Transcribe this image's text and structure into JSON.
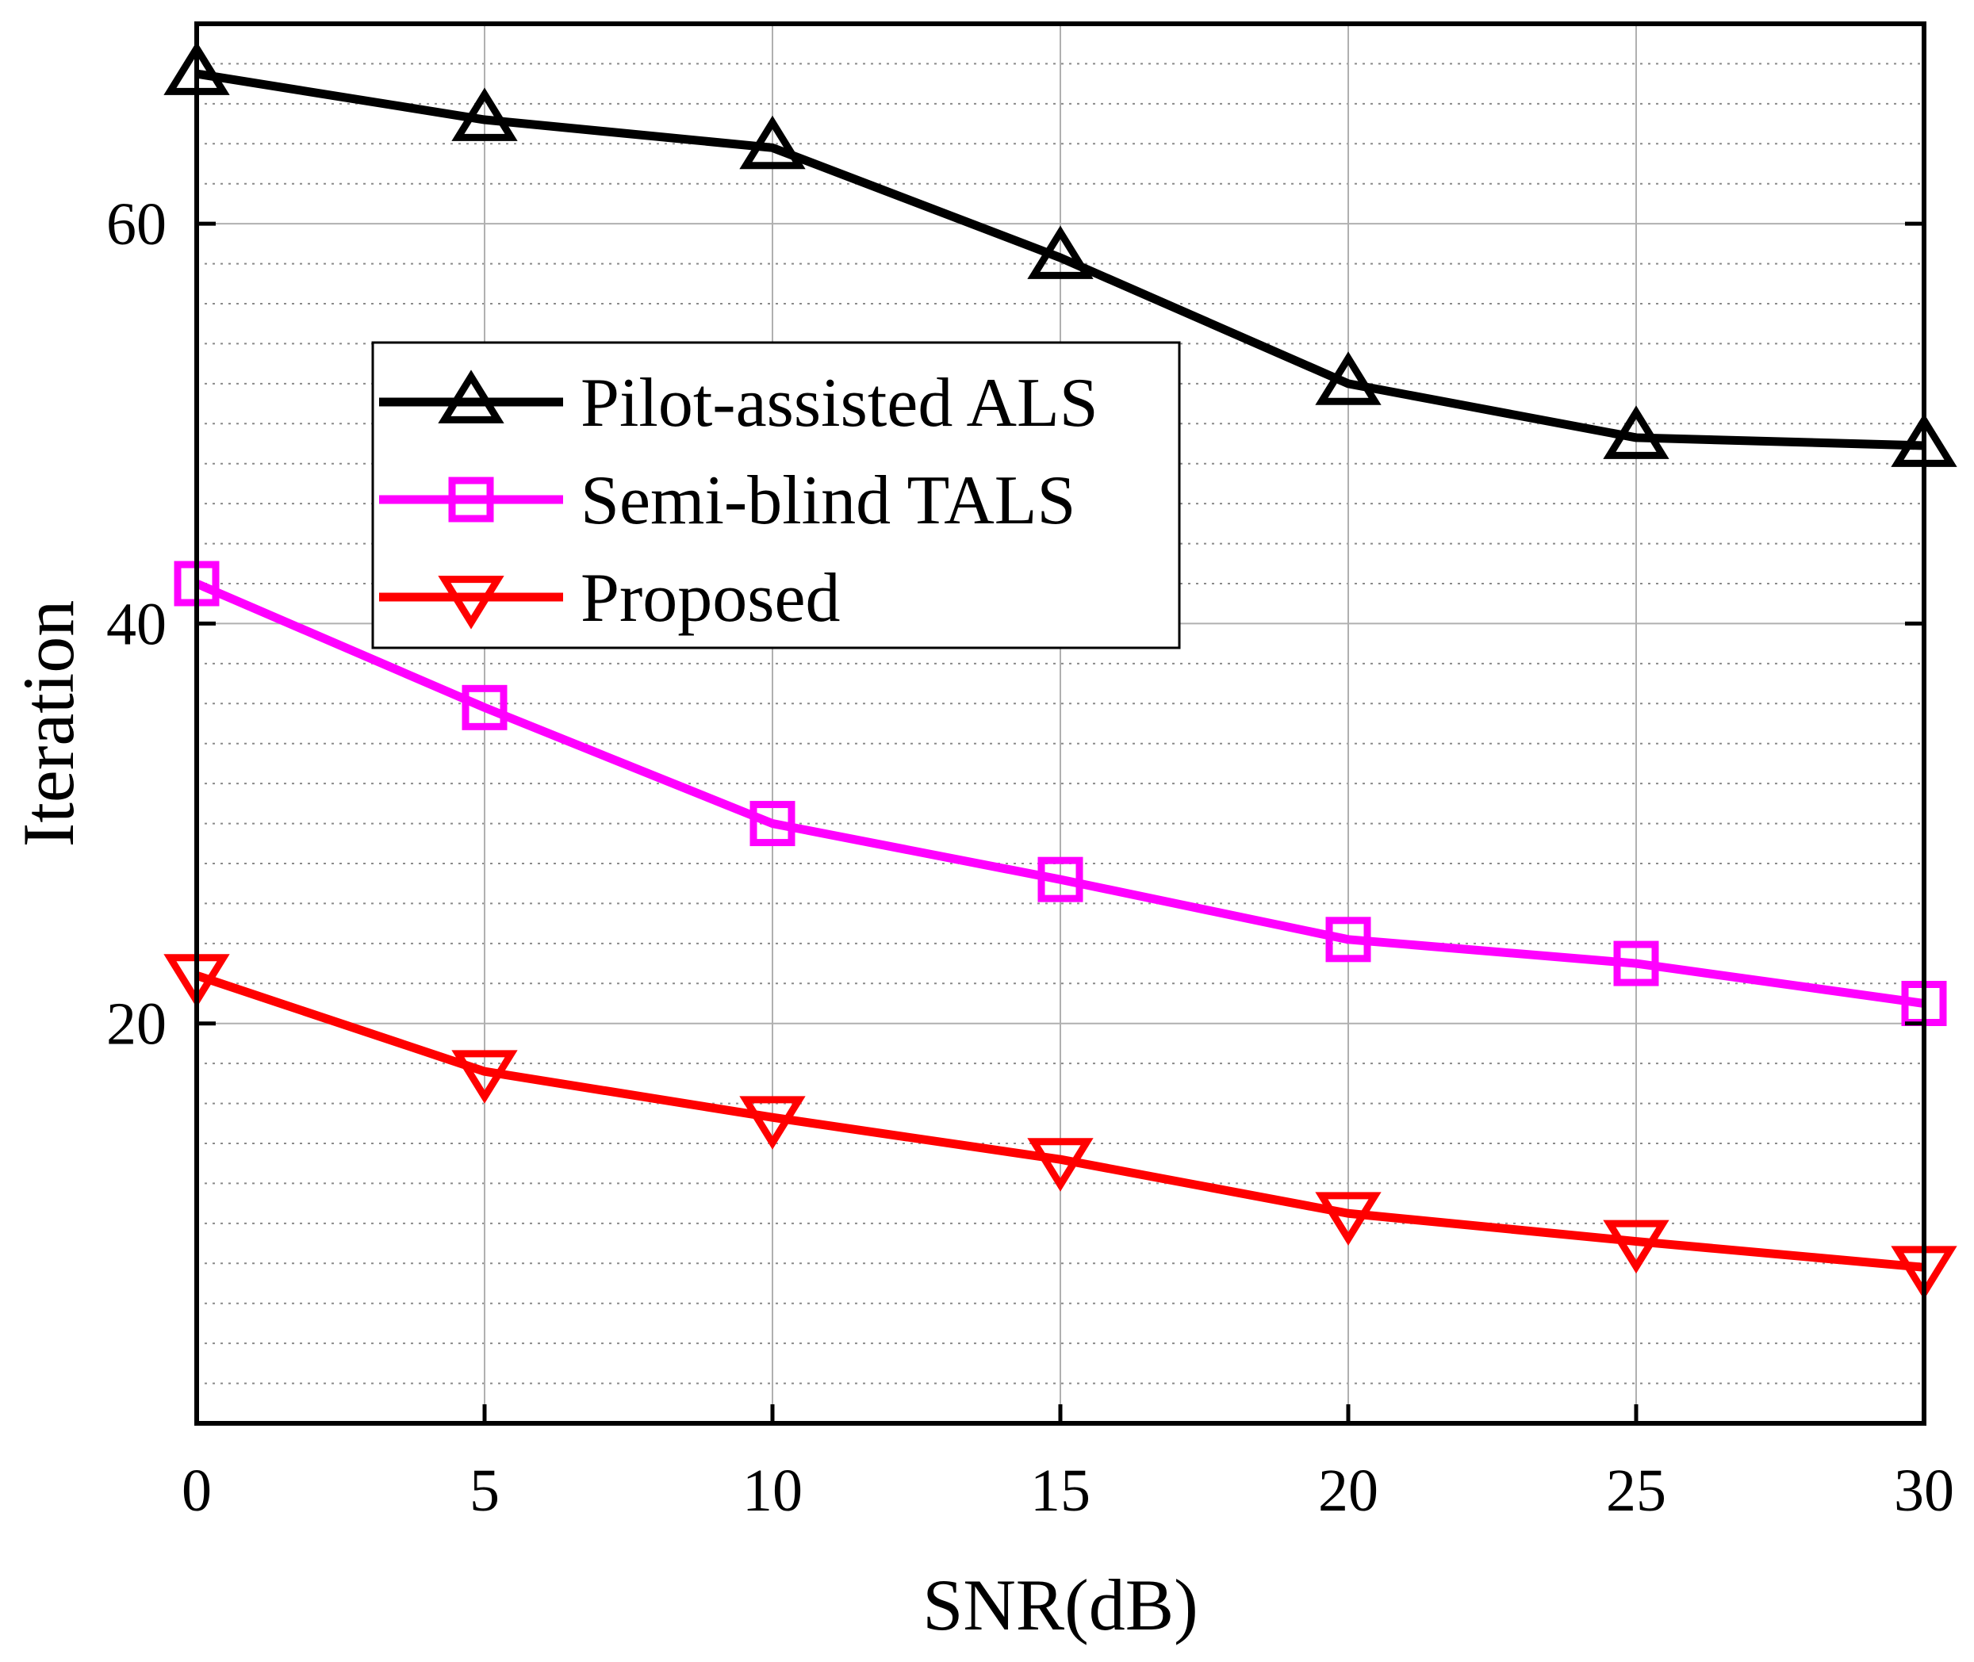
{
  "chart_data": {
    "type": "line",
    "title": "",
    "xlabel": "SNR(dB)",
    "ylabel": "Iteration",
    "x": [
      0,
      5,
      10,
      15,
      20,
      25,
      30
    ],
    "xlim": [
      0,
      30
    ],
    "ylim": [
      0,
      70
    ],
    "xticks": [
      0,
      5,
      10,
      15,
      20,
      25,
      30
    ],
    "yticks": [
      20,
      40,
      60
    ],
    "minor_y_step": 2,
    "grid": true,
    "legend_position": "upper-left",
    "series": [
      {
        "name": "Pilot-assisted ALS",
        "color": "#000000",
        "marker": "triangle-up",
        "values": [
          67.5,
          65.2,
          63.8,
          58.3,
          52.0,
          49.3,
          48.9
        ]
      },
      {
        "name": "Semi-blind TALS",
        "color": "#ff00ff",
        "marker": "square",
        "values": [
          42.0,
          35.8,
          30.0,
          27.2,
          24.2,
          23.0,
          21.0
        ]
      },
      {
        "name": "Proposed",
        "color": "#ff0000",
        "marker": "triangle-down",
        "values": [
          22.4,
          17.6,
          15.3,
          13.2,
          10.5,
          9.1,
          7.8
        ]
      }
    ]
  }
}
